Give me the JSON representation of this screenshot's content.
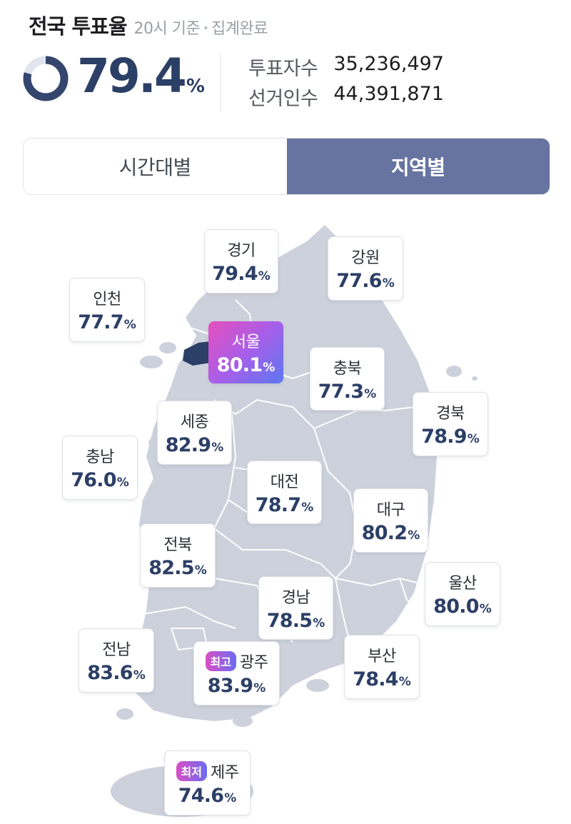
{
  "header": {
    "title": "전국 투표율",
    "time_basis": "20시 기준",
    "status": "집계완료",
    "separator": "•"
  },
  "summary": {
    "turnout_value": "79.4",
    "turnout_unit": "%",
    "turnout_fraction": 0.794,
    "voters_label": "투표자수",
    "voters_value": "35,236,497",
    "electorate_label": "선거인수",
    "electorate_value": "44,391,871"
  },
  "tabs": [
    {
      "label": "시간대별",
      "active": false
    },
    {
      "label": "지역별",
      "active": true
    }
  ],
  "colors": {
    "accent": "#2c3f66",
    "tab_active": "#6774a1",
    "map_fill": "#cdd1dc",
    "seoul_fill": "#2c3f66",
    "gradient_start": "#e54fbe",
    "gradient_end": "#5b78f1"
  },
  "regions": {
    "gyeonggi": {
      "name": "경기",
      "value": "79.4",
      "unit": "%"
    },
    "gangwon": {
      "name": "강원",
      "value": "77.6",
      "unit": "%"
    },
    "incheon": {
      "name": "인천",
      "value": "77.7",
      "unit": "%"
    },
    "seoul": {
      "name": "서울",
      "value": "80.1",
      "unit": "%"
    },
    "chungbuk": {
      "name": "충북",
      "value": "77.3",
      "unit": "%"
    },
    "gyeongbuk": {
      "name": "경북",
      "value": "78.9",
      "unit": "%"
    },
    "sejong": {
      "name": "세종",
      "value": "82.9",
      "unit": "%"
    },
    "chungnam": {
      "name": "충남",
      "value": "76.0",
      "unit": "%"
    },
    "daejeon": {
      "name": "대전",
      "value": "78.7",
      "unit": "%"
    },
    "daegu": {
      "name": "대구",
      "value": "80.2",
      "unit": "%"
    },
    "jeonbuk": {
      "name": "전북",
      "value": "82.5",
      "unit": "%"
    },
    "ulsan": {
      "name": "울산",
      "value": "80.0",
      "unit": "%"
    },
    "gyeongnam": {
      "name": "경남",
      "value": "78.5",
      "unit": "%"
    },
    "jeonnam": {
      "name": "전남",
      "value": "83.6",
      "unit": "%"
    },
    "gwangju": {
      "name": "광주",
      "value": "83.9",
      "unit": "%",
      "badge": "최고"
    },
    "busan": {
      "name": "부산",
      "value": "78.4",
      "unit": "%"
    },
    "jeju": {
      "name": "제주",
      "value": "74.6",
      "unit": "%",
      "badge": "최저"
    }
  }
}
